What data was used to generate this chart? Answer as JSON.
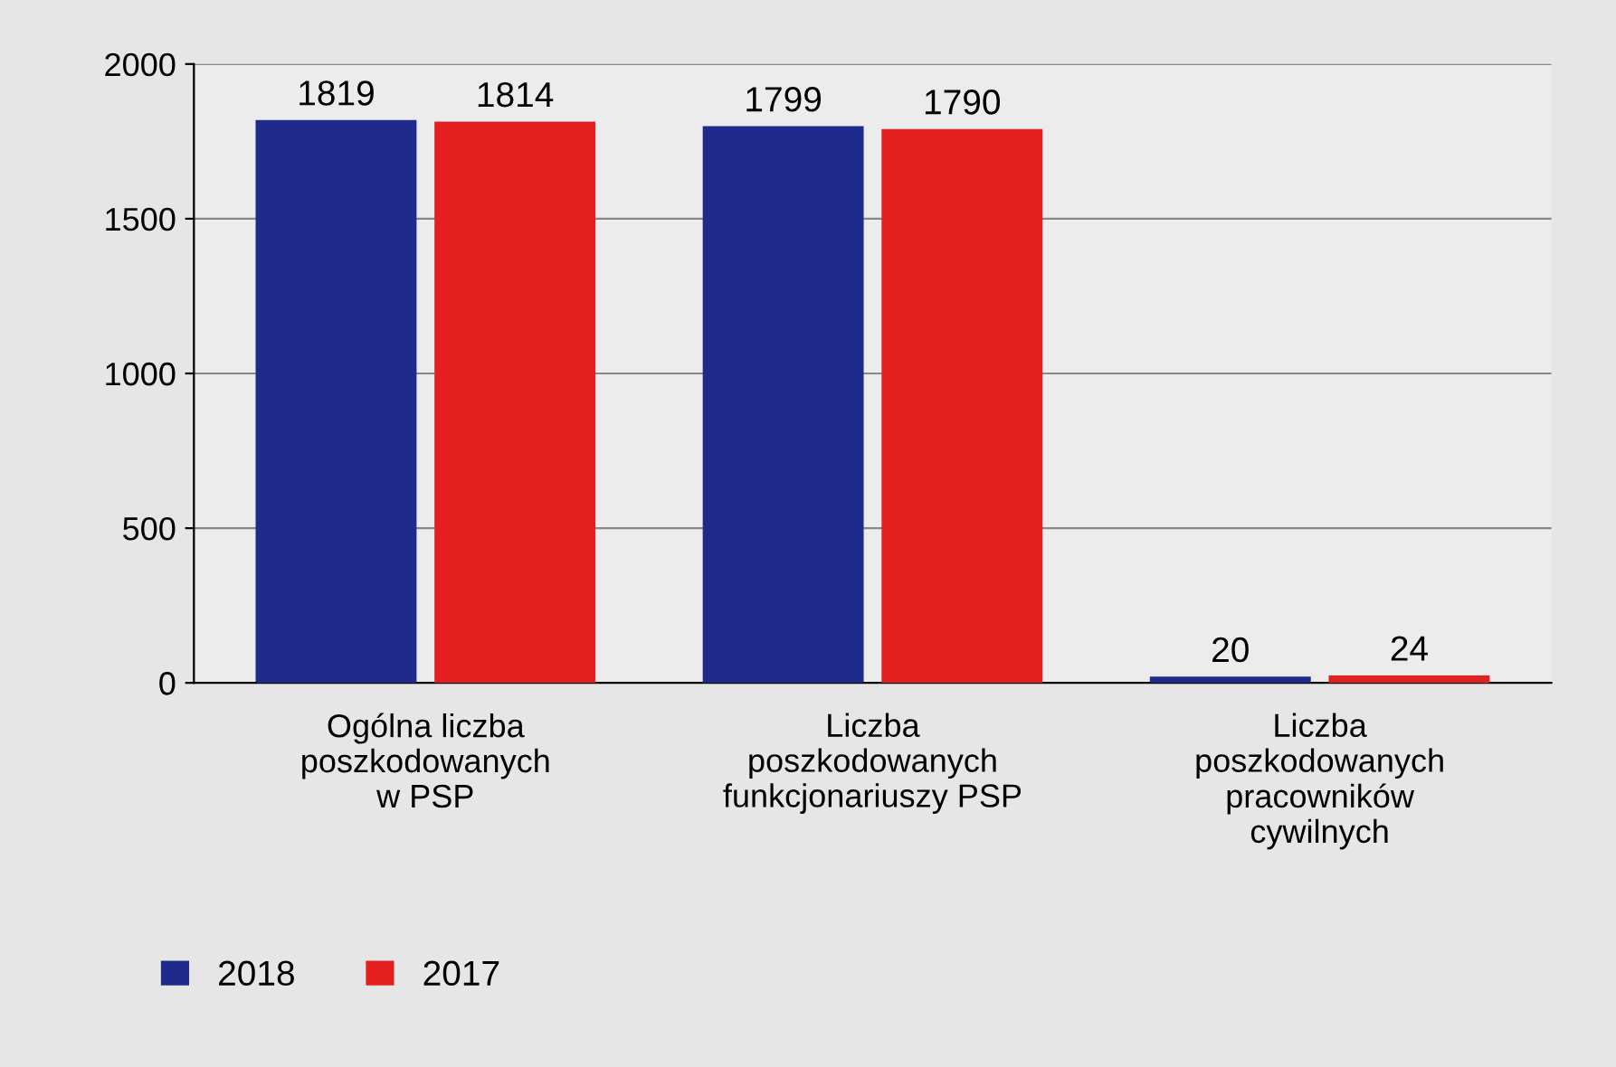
{
  "chart_data": {
    "type": "bar",
    "categories": [
      "Ogólna liczba\nposzkodowanych\nw PSP",
      "Liczba\nposzkodowanych\nfunkcjonariuszy PSP",
      "Liczba\nposzkodowanych\npracowników\ncywilnych"
    ],
    "series": [
      {
        "name": "2018",
        "color": "#1e2a8c",
        "values": [
          1819,
          1799,
          20
        ]
      },
      {
        "name": "2017",
        "color": "#e3201f",
        "values": [
          1814,
          1790,
          24
        ]
      }
    ],
    "ylim": [
      0,
      2000
    ],
    "yticks": [
      0,
      500,
      1000,
      1500,
      2000
    ],
    "grid": "y",
    "data_labels": true,
    "legend": "bottom left"
  }
}
